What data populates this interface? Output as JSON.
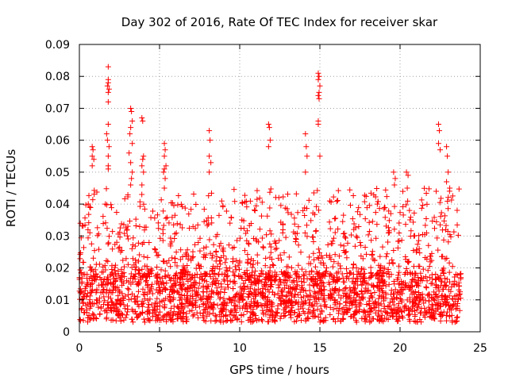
{
  "chart_data": {
    "type": "scatter",
    "title": "Day 302 of 2016, Rate Of TEC Index for receiver skar",
    "xlabel": "GPS time / hours",
    "ylabel": "ROTI / TECUs",
    "xlim": [
      0,
      25
    ],
    "ylim": [
      0,
      0.09
    ],
    "x_ticks": [
      "0",
      "5",
      "10",
      "15",
      "20",
      "25"
    ],
    "y_ticks": [
      "0",
      "0.01",
      "0.02",
      "0.03",
      "0.04",
      "0.05",
      "0.06",
      "0.07",
      "0.08",
      "0.09"
    ],
    "grid": true,
    "marker": "+",
    "series_color": "#ff0000",
    "series": [
      {
        "name": "ROTI",
        "x": [
          1.8,
          1.8,
          1.8,
          1.75,
          1.85,
          1.8,
          1.8,
          1.8,
          1.7,
          1.75,
          1.85,
          1.8,
          1.8,
          1.8,
          14.9,
          14.95,
          14.9,
          15.0,
          14.95,
          14.9,
          14.95,
          14.9,
          14.9,
          15.0,
          3.2,
          3.25,
          3.3,
          3.2,
          3.15,
          3.3,
          3.1,
          3.2,
          3.3,
          3.25,
          3.2,
          3.9,
          3.95,
          4.0,
          3.95,
          3.9,
          4.0,
          3.9,
          5.3,
          5.35,
          5.3,
          5.4,
          5.3,
          5.25,
          5.35,
          5.3,
          0.8,
          0.85,
          0.8,
          0.9,
          0.8,
          8.1,
          8.15,
          8.1,
          8.2,
          8.1,
          11.8,
          11.85,
          11.9,
          11.8,
          14.1,
          14.15,
          14.2,
          14.1,
          19.6,
          19.7,
          19.65,
          20.4,
          20.5,
          20.45,
          22.4,
          22.45,
          22.4,
          22.5,
          22.9,
          22.95,
          23.0,
          22.9,
          23.1
        ],
        "y": [
          0.083,
          0.079,
          0.078,
          0.077,
          0.076,
          0.075,
          0.072,
          0.065,
          0.062,
          0.06,
          0.058,
          0.055,
          0.052,
          0.051,
          0.081,
          0.08,
          0.079,
          0.077,
          0.075,
          0.074,
          0.073,
          0.066,
          0.065,
          0.055,
          0.07,
          0.069,
          0.066,
          0.064,
          0.062,
          0.059,
          0.056,
          0.053,
          0.05,
          0.048,
          0.046,
          0.067,
          0.066,
          0.055,
          0.054,
          0.052,
          0.05,
          0.046,
          0.059,
          0.057,
          0.055,
          0.052,
          0.051,
          0.05,
          0.048,
          0.045,
          0.058,
          0.057,
          0.055,
          0.054,
          0.052,
          0.063,
          0.06,
          0.055,
          0.053,
          0.05,
          0.065,
          0.064,
          0.06,
          0.058,
          0.062,
          0.058,
          0.055,
          0.05,
          0.05,
          0.048,
          0.046,
          0.05,
          0.049,
          0.045,
          0.065,
          0.063,
          0.059,
          0.057,
          0.058,
          0.055,
          0.05,
          0.047,
          0.045
        ]
      }
    ],
    "dense_band": {
      "x_range": [
        0,
        23.8
      ],
      "baseline_y_range": [
        0.003,
        0.018
      ],
      "spread_y_range": [
        0.018,
        0.045
      ],
      "gap_hours": [
        [
          15.0,
          15.5
        ]
      ]
    }
  }
}
